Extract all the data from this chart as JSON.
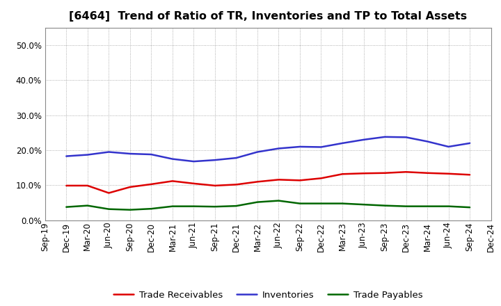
{
  "title": "[6464]  Trend of Ratio of TR, Inventories and TP to Total Assets",
  "x_labels": [
    "Sep-19",
    "Dec-19",
    "Mar-20",
    "Jun-20",
    "Sep-20",
    "Dec-20",
    "Mar-21",
    "Jun-21",
    "Sep-21",
    "Dec-21",
    "Mar-22",
    "Jun-22",
    "Sep-22",
    "Dec-22",
    "Mar-23",
    "Jun-23",
    "Sep-23",
    "Dec-23",
    "Mar-24",
    "Jun-24",
    "Sep-24",
    "Dec-24"
  ],
  "trade_receivables": [
    null,
    9.9,
    9.9,
    7.8,
    9.5,
    10.3,
    11.2,
    10.5,
    9.9,
    10.2,
    11.0,
    11.6,
    11.4,
    12.0,
    13.2,
    13.4,
    13.5,
    13.8,
    13.5,
    13.3,
    13.0,
    null
  ],
  "inventories": [
    null,
    18.3,
    18.7,
    19.5,
    19.0,
    18.8,
    17.5,
    16.8,
    17.2,
    17.8,
    19.5,
    20.5,
    21.0,
    20.9,
    22.0,
    23.0,
    23.8,
    23.7,
    22.5,
    21.0,
    22.0,
    null
  ],
  "trade_payables": [
    null,
    3.8,
    4.2,
    3.2,
    3.0,
    3.3,
    4.0,
    4.0,
    3.9,
    4.1,
    5.2,
    5.6,
    4.8,
    4.8,
    4.8,
    4.5,
    4.2,
    4.0,
    4.0,
    4.0,
    3.7,
    null
  ],
  "tr_color": "#dd0000",
  "inv_color": "#3333cc",
  "tp_color": "#006600",
  "ylim_min": 0.0,
  "ylim_max": 0.55,
  "yticks": [
    0.0,
    0.1,
    0.2,
    0.3,
    0.4,
    0.5
  ],
  "legend_labels": [
    "Trade Receivables",
    "Inventories",
    "Trade Payables"
  ],
  "bg_color": "#ffffff",
  "grid_color": "#999999",
  "line_width": 1.8,
  "title_fontsize": 11.5,
  "tick_fontsize": 8.5,
  "legend_fontsize": 9.5
}
